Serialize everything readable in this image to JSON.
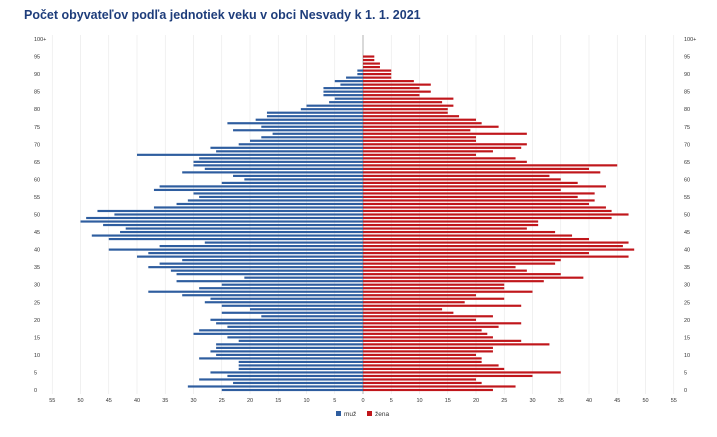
{
  "title": "Počet obyvateľov podľa jednotiek veku v obci Nesvady k 1. 1. 2021",
  "colors": {
    "male": "#2e5d9f",
    "female": "#c0161b",
    "grid": "#e6e6e6",
    "axis": "#999999"
  },
  "chart_data": {
    "type": "bar",
    "orientation": "horizontal",
    "subtype": "population-pyramid",
    "title": "Počet obyvateľov podľa jednotiek veku v obci Nesvady k 1. 1. 2021",
    "ages": [
      0,
      1,
      2,
      3,
      4,
      5,
      6,
      7,
      8,
      9,
      10,
      11,
      12,
      13,
      14,
      15,
      16,
      17,
      18,
      19,
      20,
      21,
      22,
      23,
      24,
      25,
      26,
      27,
      28,
      29,
      30,
      31,
      32,
      33,
      34,
      35,
      36,
      37,
      38,
      39,
      40,
      41,
      42,
      43,
      44,
      45,
      46,
      47,
      48,
      49,
      50,
      51,
      52,
      53,
      54,
      55,
      56,
      57,
      58,
      59,
      60,
      61,
      62,
      63,
      64,
      65,
      66,
      67,
      68,
      69,
      70,
      71,
      72,
      73,
      74,
      75,
      76,
      77,
      78,
      79,
      80,
      81,
      82,
      83,
      84,
      85,
      86,
      87,
      88,
      89,
      90,
      91,
      92,
      93,
      94,
      95,
      96,
      97,
      98,
      99,
      "100+"
    ],
    "y_tick_labels": [
      "0",
      "5",
      "10",
      "15",
      "20",
      "25",
      "30",
      "35",
      "40",
      "45",
      "50",
      "55",
      "60",
      "65",
      "70",
      "75",
      "80",
      "85",
      "90",
      "95",
      "100+"
    ],
    "x_tick_labels": [
      "55",
      "50",
      "45",
      "40",
      "35",
      "30",
      "25",
      "20",
      "15",
      "10",
      "5",
      "0",
      "5",
      "10",
      "15",
      "20",
      "25",
      "30",
      "35",
      "40",
      "45",
      "50",
      "55"
    ],
    "xlim": [
      -55,
      55
    ],
    "series": [
      {
        "name": "muž",
        "values": [
          25,
          31,
          23,
          29,
          24,
          27,
          22,
          22,
          22,
          29,
          26,
          27,
          26,
          26,
          22,
          24,
          30,
          29,
          24,
          26,
          27,
          18,
          25,
          20,
          25,
          28,
          27,
          32,
          38,
          29,
          25,
          33,
          21,
          33,
          34,
          38,
          36,
          32,
          40,
          38,
          45,
          36,
          28,
          45,
          48,
          43,
          42,
          46,
          50,
          49,
          44,
          47,
          37,
          33,
          31,
          29,
          30,
          37,
          36,
          25,
          21,
          23,
          32,
          28,
          30,
          30,
          29,
          40,
          26,
          27,
          22,
          20,
          18,
          16,
          23,
          18,
          24,
          19,
          17,
          17,
          11,
          10,
          6,
          5,
          7,
          7,
          7,
          4,
          5,
          3,
          1,
          1,
          0,
          0,
          0,
          0,
          0,
          0,
          0,
          0,
          0
        ]
      },
      {
        "name": "žena",
        "values": [
          23,
          27,
          21,
          20,
          30,
          35,
          25,
          24,
          21,
          21,
          20,
          23,
          23,
          33,
          28,
          23,
          22,
          21,
          24,
          28,
          20,
          23,
          16,
          14,
          28,
          18,
          25,
          20,
          30,
          25,
          25,
          32,
          39,
          35,
          29,
          27,
          34,
          35,
          47,
          40,
          48,
          46,
          47,
          40,
          37,
          34,
          29,
          31,
          31,
          44,
          47,
          44,
          43,
          40,
          41,
          38,
          41,
          35,
          43,
          38,
          35,
          33,
          42,
          40,
          45,
          29,
          27,
          20,
          23,
          28,
          29,
          20,
          20,
          29,
          19,
          24,
          21,
          20,
          17,
          15,
          15,
          16,
          14,
          16,
          10,
          12,
          10,
          12,
          9,
          5,
          5,
          5,
          3,
          3,
          2,
          2,
          0,
          0,
          0,
          0,
          0
        ]
      }
    ],
    "legend": {
      "position": "bottom-center",
      "items": [
        "muž",
        "žena"
      ]
    },
    "grid": true
  }
}
